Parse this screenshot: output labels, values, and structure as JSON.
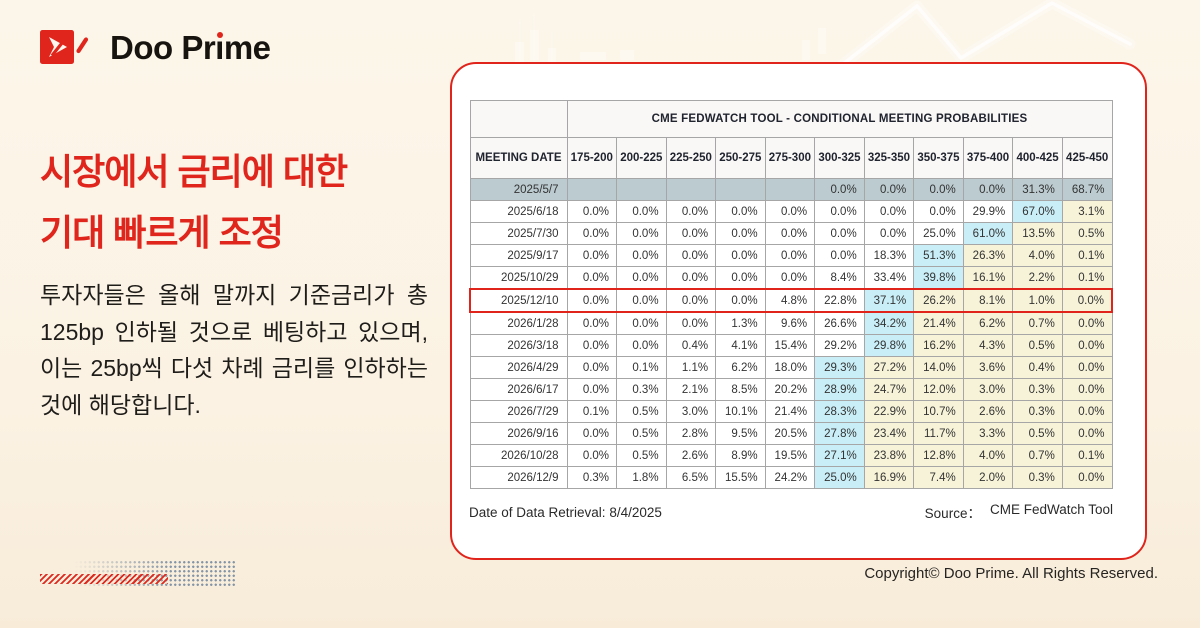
{
  "logo": {
    "brand": "Doo Prime"
  },
  "headline": {
    "lines": [
      "시장에서 금리에 대한",
      "기대 빠르게 조정"
    ],
    "color": "#e0251c"
  },
  "body_text": "투자자들은 올해 말까지 기준금리가 총 125bp 인하될 것으로 베팅하고 있으며, 이는 25bp씩 다섯 차례 금리를 인하하는 것에 해당합니다.",
  "card_footer": {
    "retrieval": "Date of Data Retrieval: 8/4/2025",
    "source_label": "Source：",
    "source_value": "CME FedWatch Tool"
  },
  "copyright": "Copyright© Doo Prime. All Rights Reserved.",
  "colors": {
    "accent_red": "#e0251c",
    "highlight_cyan": "#c9eef7",
    "highlight_yellow": "#f7f3d8",
    "current_row_gray": "#bccbd0",
    "table_border": "#a6a6a6",
    "background_cream": "#fbf2e3"
  },
  "chart_data": {
    "type": "table",
    "title": "CME FEDWATCH TOOL - CONDITIONAL MEETING PROBABILITIES",
    "meeting_date_header": "MEETING DATE",
    "rate_range_columns": [
      "175-200",
      "200-225",
      "225-250",
      "250-275",
      "275-300",
      "300-325",
      "325-350",
      "350-375",
      "375-400",
      "400-425",
      "425-450"
    ],
    "highlight_legend": {
      "cyan": "highest probability cell in row",
      "yellow": "cells above the highest-probability cell",
      "gray": "current/latest meeting row",
      "marked": "row outlined in red"
    },
    "rows": [
      {
        "date": "2025/5/7",
        "values": [
          "",
          "",
          "",
          "",
          "",
          "0.0%",
          "0.0%",
          "0.0%",
          "0.0%",
          "31.3%",
          "68.7%"
        ],
        "max_col": -1,
        "gray": true,
        "marked": false
      },
      {
        "date": "2025/6/18",
        "values": [
          "0.0%",
          "0.0%",
          "0.0%",
          "0.0%",
          "0.0%",
          "0.0%",
          "0.0%",
          "0.0%",
          "29.9%",
          "67.0%",
          "3.1%"
        ],
        "max_col": 9,
        "gray": false,
        "marked": false
      },
      {
        "date": "2025/7/30",
        "values": [
          "0.0%",
          "0.0%",
          "0.0%",
          "0.0%",
          "0.0%",
          "0.0%",
          "0.0%",
          "25.0%",
          "61.0%",
          "13.5%",
          "0.5%"
        ],
        "max_col": 8,
        "gray": false,
        "marked": false
      },
      {
        "date": "2025/9/17",
        "values": [
          "0.0%",
          "0.0%",
          "0.0%",
          "0.0%",
          "0.0%",
          "0.0%",
          "18.3%",
          "51.3%",
          "26.3%",
          "4.0%",
          "0.1%"
        ],
        "max_col": 7,
        "gray": false,
        "marked": false
      },
      {
        "date": "2025/10/29",
        "values": [
          "0.0%",
          "0.0%",
          "0.0%",
          "0.0%",
          "0.0%",
          "8.4%",
          "33.4%",
          "39.8%",
          "16.1%",
          "2.2%",
          "0.1%"
        ],
        "max_col": 7,
        "gray": false,
        "marked": false
      },
      {
        "date": "2025/12/10",
        "values": [
          "0.0%",
          "0.0%",
          "0.0%",
          "0.0%",
          "4.8%",
          "22.8%",
          "37.1%",
          "26.2%",
          "8.1%",
          "1.0%",
          "0.0%"
        ],
        "max_col": 6,
        "gray": false,
        "marked": true
      },
      {
        "date": "2026/1/28",
        "values": [
          "0.0%",
          "0.0%",
          "0.0%",
          "1.3%",
          "9.6%",
          "26.6%",
          "34.2%",
          "21.4%",
          "6.2%",
          "0.7%",
          "0.0%"
        ],
        "max_col": 6,
        "gray": false,
        "marked": false
      },
      {
        "date": "2026/3/18",
        "values": [
          "0.0%",
          "0.0%",
          "0.4%",
          "4.1%",
          "15.4%",
          "29.2%",
          "29.8%",
          "16.2%",
          "4.3%",
          "0.5%",
          "0.0%"
        ],
        "max_col": 6,
        "gray": false,
        "marked": false
      },
      {
        "date": "2026/4/29",
        "values": [
          "0.0%",
          "0.1%",
          "1.1%",
          "6.2%",
          "18.0%",
          "29.3%",
          "27.2%",
          "14.0%",
          "3.6%",
          "0.4%",
          "0.0%"
        ],
        "max_col": 5,
        "gray": false,
        "marked": false
      },
      {
        "date": "2026/6/17",
        "values": [
          "0.0%",
          "0.3%",
          "2.1%",
          "8.5%",
          "20.2%",
          "28.9%",
          "24.7%",
          "12.0%",
          "3.0%",
          "0.3%",
          "0.0%"
        ],
        "max_col": 5,
        "gray": false,
        "marked": false
      },
      {
        "date": "2026/7/29",
        "values": [
          "0.1%",
          "0.5%",
          "3.0%",
          "10.1%",
          "21.4%",
          "28.3%",
          "22.9%",
          "10.7%",
          "2.6%",
          "0.3%",
          "0.0%"
        ],
        "max_col": 5,
        "gray": false,
        "marked": false
      },
      {
        "date": "2026/9/16",
        "values": [
          "0.0%",
          "0.5%",
          "2.8%",
          "9.5%",
          "20.5%",
          "27.8%",
          "23.4%",
          "11.7%",
          "3.3%",
          "0.5%",
          "0.0%"
        ],
        "max_col": 5,
        "gray": false,
        "marked": false
      },
      {
        "date": "2026/10/28",
        "values": [
          "0.0%",
          "0.5%",
          "2.6%",
          "8.9%",
          "19.5%",
          "27.1%",
          "23.8%",
          "12.8%",
          "4.0%",
          "0.7%",
          "0.1%"
        ],
        "max_col": 5,
        "gray": false,
        "marked": false
      },
      {
        "date": "2026/12/9",
        "values": [
          "0.3%",
          "1.8%",
          "6.5%",
          "15.5%",
          "24.2%",
          "25.0%",
          "16.9%",
          "7.4%",
          "2.0%",
          "0.3%",
          "0.0%"
        ],
        "max_col": 5,
        "gray": false,
        "marked": false
      }
    ]
  }
}
